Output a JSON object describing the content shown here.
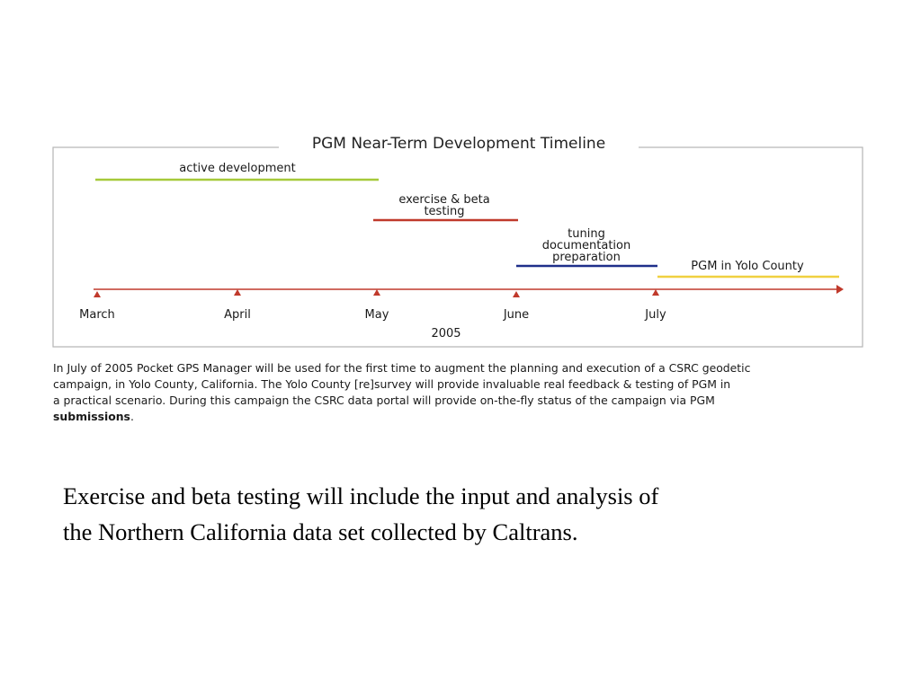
{
  "figure": {
    "title": "PGM Near-Term Development Timeline",
    "phases": [
      {
        "lines": [
          "active development"
        ],
        "color": "#a6c93a"
      },
      {
        "lines": [
          "exercise & beta",
          "testing"
        ],
        "color": "#c0392b"
      },
      {
        "lines": [
          "tuning",
          "documentation",
          "preparation"
        ],
        "color": "#1f2f8a"
      },
      {
        "lines": [
          "PGM in Yolo County"
        ],
        "color": "#f0d040"
      }
    ],
    "months": [
      "March",
      "April",
      "May",
      "June",
      "July"
    ],
    "year": "2005",
    "axis_color": "#c0392b",
    "frame_color": "#b5b5b5"
  },
  "caption": {
    "line1": "In July of 2005 Pocket GPS Manager will be used for the first time to augment the planning and execution of a CSRC geodetic",
    "line2": "campaign, in Yolo County, California.  The Yolo County [re]survey will provide invaluable real feedback & testing of PGM in",
    "line3": "a practical scenario.  During this campaign the CSRC data portal will provide on-the-fly status of the campaign via PGM",
    "line4_bold": "submissions",
    "line4_tail": "."
  },
  "body": {
    "line1": "Exercise and beta testing will include the input and analysis of",
    "line2": "the Northern California data set collected by Caltrans."
  }
}
